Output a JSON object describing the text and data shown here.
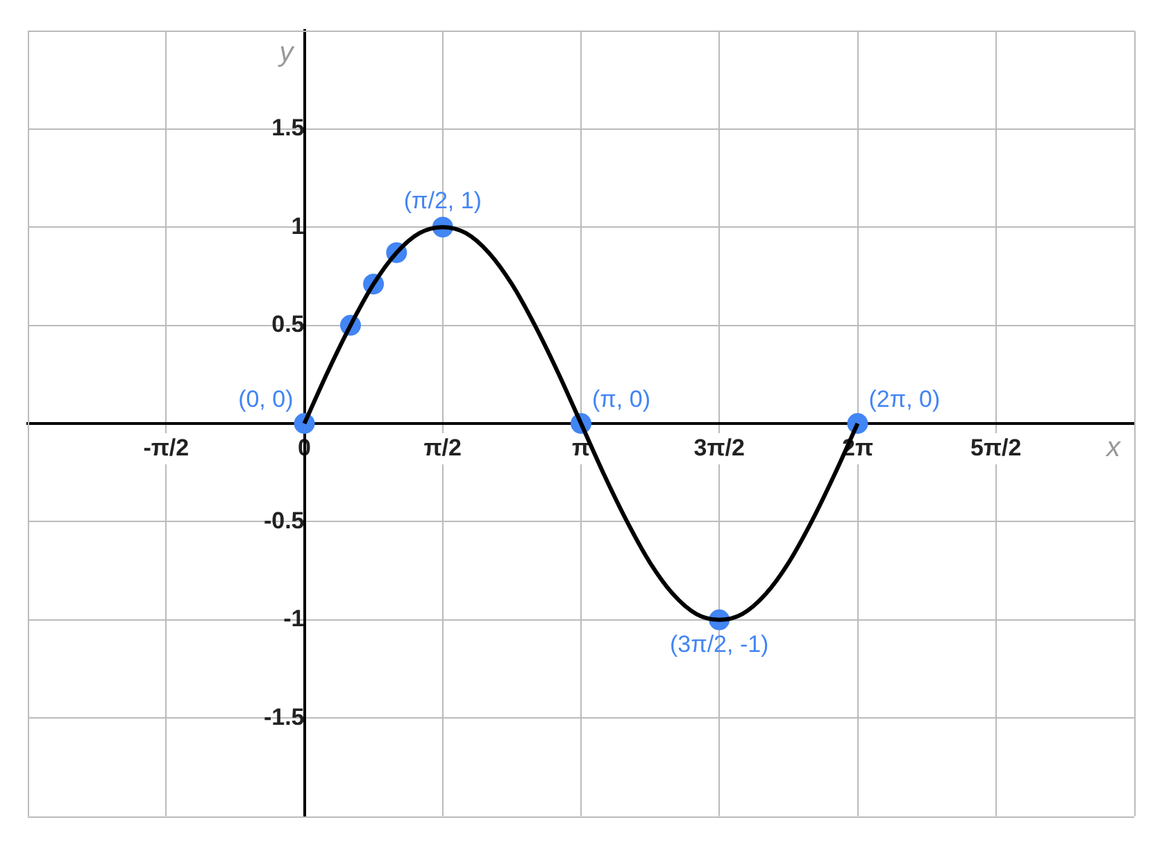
{
  "chart_data": {
    "type": "line",
    "xlabel": "x",
    "ylabel": "y",
    "xlim": [
      -3.1416,
      9.4248
    ],
    "ylim": [
      -2,
      2
    ],
    "xticks": [
      {
        "value": -3.1416,
        "label": null
      },
      {
        "value": -1.5708,
        "label": "-π/2"
      },
      {
        "value": 0,
        "label": "0"
      },
      {
        "value": 1.5708,
        "label": "π/2"
      },
      {
        "value": 3.1416,
        "label": "π"
      },
      {
        "value": 4.7124,
        "label": "3π/2"
      },
      {
        "value": 6.2832,
        "label": "2π"
      },
      {
        "value": 7.854,
        "label": "5π/2"
      },
      {
        "value": 9.4248,
        "label": null
      }
    ],
    "yticks": [
      {
        "value": -2,
        "label": null
      },
      -1.5,
      -1,
      -0.5,
      {
        "value": 0,
        "label": null
      },
      0.5,
      1,
      1.5,
      {
        "value": 2,
        "label": null
      }
    ],
    "grid": true,
    "series": [
      {
        "type": "line",
        "color": "#000000",
        "marker": "none",
        "x": [
          0,
          0.262,
          0.524,
          0.785,
          1.047,
          1.309,
          1.571,
          1.833,
          2.094,
          2.356,
          2.618,
          2.88,
          3.142,
          3.403,
          3.665,
          3.927,
          4.189,
          4.451,
          4.712,
          4.974,
          5.236,
          5.498,
          5.76,
          6.021,
          6.283
        ],
        "values": [
          0,
          0.26,
          0.5,
          0.71,
          0.87,
          0.97,
          1,
          0.97,
          0.87,
          0.71,
          0.5,
          0.26,
          0,
          -0.26,
          -0.5,
          -0.71,
          -0.87,
          -0.97,
          -1,
          -0.97,
          -0.87,
          -0.71,
          -0.5,
          -0.26,
          0
        ]
      },
      {
        "type": "scatter",
        "color": "#4285f4",
        "marker": "circle",
        "x": [
          0,
          0.524,
          0.785,
          1.047,
          1.571,
          3.142,
          4.712,
          6.283
        ],
        "values": [
          0,
          0.5,
          0.71,
          0.87,
          1,
          0,
          -1,
          0
        ]
      }
    ],
    "annotations": [
      {
        "text": "(0, 0)",
        "x": 0,
        "y": 0
      },
      {
        "text": "(π/2, 1)",
        "x": 1.571,
        "y": 1
      },
      {
        "text": "(π, 0)",
        "x": 3.142,
        "y": 0
      },
      {
        "text": "(3π/2, -1)",
        "x": 4.712,
        "y": -1
      },
      {
        "text": "(2π, 0)",
        "x": 6.283,
        "y": 0
      }
    ]
  }
}
